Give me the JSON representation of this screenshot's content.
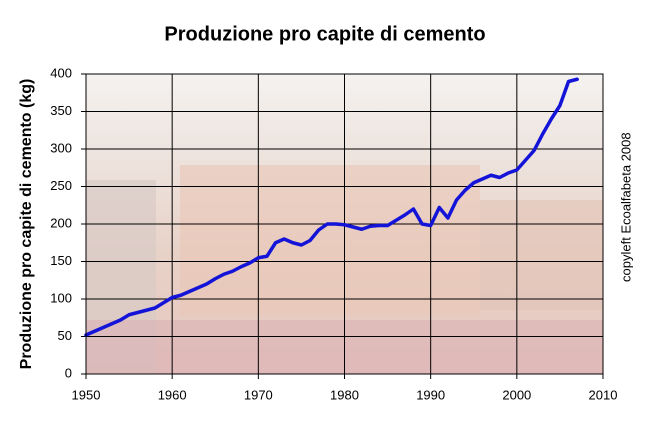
{
  "chart_data": {
    "type": "line",
    "title": "Produzione pro capite di cemento",
    "y_label": "Produzione pro capite di cemento (kg)",
    "annotation": "copyleft Ecoalfabeta 2008",
    "x": [
      1950,
      1951,
      1952,
      1953,
      1954,
      1955,
      1956,
      1957,
      1958,
      1959,
      1960,
      1961,
      1962,
      1963,
      1964,
      1965,
      1966,
      1967,
      1968,
      1969,
      1970,
      1971,
      1972,
      1973,
      1974,
      1975,
      1976,
      1977,
      1978,
      1979,
      1980,
      1981,
      1982,
      1983,
      1984,
      1985,
      1986,
      1987,
      1988,
      1989,
      1990,
      1991,
      1992,
      1993,
      1994,
      1995,
      1996,
      1997,
      1998,
      1999,
      2000,
      2001,
      2002,
      2003,
      2004,
      2005,
      2006,
      2007
    ],
    "series": [
      {
        "name": "Produzione pro capite di cemento",
        "color": "#1414d8",
        "values": [
          52,
          57,
          62,
          67,
          72,
          79,
          82,
          85,
          88,
          95,
          102,
          105,
          110,
          115,
          120,
          127,
          133,
          137,
          143,
          148,
          155,
          157,
          175,
          180,
          175,
          172,
          178,
          192,
          200,
          200,
          199,
          196,
          193,
          197,
          198,
          198,
          205,
          212,
          220,
          200,
          198,
          222,
          208,
          232,
          245,
          255,
          260,
          265,
          262,
          268,
          272,
          285,
          298,
          320,
          340,
          358,
          390,
          393
        ]
      }
    ],
    "xlim": [
      1950,
      2010
    ],
    "xticks": [
      1950,
      1960,
      1970,
      1980,
      1990,
      2000,
      2010
    ],
    "ylim": [
      0,
      400
    ],
    "yticks": [
      0,
      50,
      100,
      150,
      200,
      250,
      300,
      350,
      400
    ],
    "grid": true
  }
}
